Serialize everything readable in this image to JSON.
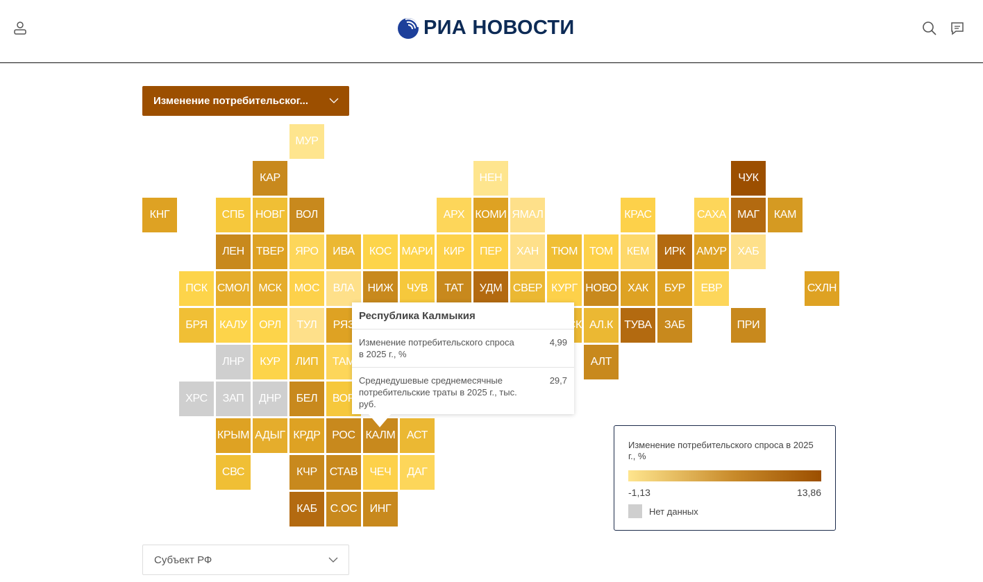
{
  "header": {
    "logo_text": "РИА НОВОСТИ",
    "icons": [
      "user-icon",
      "search-icon",
      "comment-icon"
    ]
  },
  "indicator_select": {
    "value": "Изменение потребительског..."
  },
  "region_select": {
    "placeholder": "Субъект РФ"
  },
  "colors": {
    "scale_min": "#fee58e",
    "scale_max": "#9c4f00",
    "no_data": "#cfcfcf",
    "accent": "#9c4f00"
  },
  "tiles": [
    {
      "label": "МУР",
      "color": "#fee58e"
    },
    {
      "label": "КАР",
      "color": "#c8891d"
    },
    {
      "label": "НЕН",
      "color": "#fee58e"
    },
    {
      "label": "ЧУК",
      "color": "#9c4f00"
    },
    {
      "label": "КНГ",
      "color": "#dea223"
    },
    {
      "label": "СПБ",
      "color": "#f6c83c"
    },
    {
      "label": "НОВГ",
      "color": "#f0bf35"
    },
    {
      "label": "ВОЛ",
      "color": "#c8891d"
    },
    {
      "label": "АРХ",
      "color": "#fdd65a"
    },
    {
      "label": "КОМИ",
      "color": "#dea223"
    },
    {
      "label": "ЯМАЛ",
      "color": "#fee08a"
    },
    {
      "label": "КРАС",
      "color": "#fdd14a"
    },
    {
      "label": "САХА",
      "color": "#fdd65a"
    },
    {
      "label": "МАГ",
      "color": "#b36a10"
    },
    {
      "label": "КАМ",
      "color": "#d59a22"
    },
    {
      "label": "ЛЕН",
      "color": "#c8891d"
    },
    {
      "label": "ТВЕР",
      "color": "#dea223"
    },
    {
      "label": "ЯРО",
      "color": "#fdd65a"
    },
    {
      "label": "ИВА",
      "color": "#ebb833"
    },
    {
      "label": "КОС",
      "color": "#fdd44a"
    },
    {
      "label": "МАРИ",
      "color": "#fdd44a"
    },
    {
      "label": "КИР",
      "color": "#fdd14a"
    },
    {
      "label": "ПЕР",
      "color": "#fdd14a"
    },
    {
      "label": "ХАН",
      "color": "#fee08a"
    },
    {
      "label": "ТЮМ",
      "color": "#f0bf35"
    },
    {
      "label": "ТОМ",
      "color": "#fdd14a"
    },
    {
      "label": "КЕМ",
      "color": "#fdd86a"
    },
    {
      "label": "ИРК",
      "color": "#b36a10"
    },
    {
      "label": "АМУР",
      "color": "#dea223"
    },
    {
      "label": "ХАБ",
      "color": "#fee08a"
    },
    {
      "label": "ПСК",
      "color": "#fdd44a"
    },
    {
      "label": "СМОЛ",
      "color": "#e5ad2c"
    },
    {
      "label": "МСК",
      "color": "#e5ad2c"
    },
    {
      "label": "МОС",
      "color": "#fdd14a"
    },
    {
      "label": "ВЛА",
      "color": "#fee08a"
    },
    {
      "label": "НИЖ",
      "color": "#c8891d"
    },
    {
      "label": "ЧУВ",
      "color": "#f6c83c"
    },
    {
      "label": "ТАТ",
      "color": "#c8891d"
    },
    {
      "label": "УДМ",
      "color": "#b36a10"
    },
    {
      "label": "СВЕР",
      "color": "#ebb833"
    },
    {
      "label": "КУРГ",
      "color": "#fdd14a"
    },
    {
      "label": "НОВО",
      "color": "#c8891d"
    },
    {
      "label": "ХАК",
      "color": "#dea223"
    },
    {
      "label": "БУР",
      "color": "#dea223"
    },
    {
      "label": "ЕВР",
      "color": "#fdd65a"
    },
    {
      "label": "СХЛН",
      "color": "#dea223"
    },
    {
      "label": "БРЯ",
      "color": "#f0bf35"
    },
    {
      "label": "КАЛУ",
      "color": "#fdd44a"
    },
    {
      "label": "ОРЛ",
      "color": "#fdd44a"
    },
    {
      "label": "ТУЛ",
      "color": "#fee08a"
    },
    {
      "label": "РЯЗ",
      "color": "#dea223"
    },
    {
      "label": "ОМСК",
      "color": "#ebb833"
    },
    {
      "label": "АЛ.К",
      "color": "#ebb833"
    },
    {
      "label": "ТУВА",
      "color": "#b36a10"
    },
    {
      "label": "ЗАБ",
      "color": "#c8891d"
    },
    {
      "label": "ПРИ",
      "color": "#c8891d"
    },
    {
      "label": "ЛНР",
      "color": "#cfcfcf"
    },
    {
      "label": "КУР",
      "color": "#fdd44a"
    },
    {
      "label": "ЛИП",
      "color": "#f0bf35"
    },
    {
      "label": "ТАМ",
      "color": "#fdd65a"
    },
    {
      "label": "АЛТ",
      "color": "#c8891d"
    },
    {
      "label": "ХРС",
      "color": "#cfcfcf"
    },
    {
      "label": "ЗАП",
      "color": "#cfcfcf"
    },
    {
      "label": "ДНР",
      "color": "#cfcfcf"
    },
    {
      "label": "БЕЛ",
      "color": "#c8891d"
    },
    {
      "label": "ВОР",
      "color": "#f6c83c"
    },
    {
      "label": "КРЫМ",
      "color": "#dea223"
    },
    {
      "label": "АДЫГ",
      "color": "#e5ad2c"
    },
    {
      "label": "КРДР",
      "color": "#dea223"
    },
    {
      "label": "РОС",
      "color": "#c8891d"
    },
    {
      "label": "КАЛМ",
      "color": "#c8891d"
    },
    {
      "label": "АСТ",
      "color": "#ebb833"
    },
    {
      "label": "СВС",
      "color": "#f0bf35"
    },
    {
      "label": "КЧР",
      "color": "#c8891d"
    },
    {
      "label": "СТАВ",
      "color": "#c8891d"
    },
    {
      "label": "ЧЕЧ",
      "color": "#fdd14a"
    },
    {
      "label": "ДАГ",
      "color": "#fdd65a"
    },
    {
      "label": "КАБ",
      "color": "#b36a10"
    },
    {
      "label": "С.ОС",
      "color": "#c8891d"
    },
    {
      "label": "ИНГ",
      "color": "#c8891d"
    }
  ],
  "tooltip": {
    "title": "Республика Калмыкия",
    "rows": [
      {
        "label": "Изменение потребительского спроса в 2025 г., %",
        "value": "4,99"
      },
      {
        "label": "Среднедушевые среднемесячные потребительские траты в 2025 г., тыс. руб.",
        "value": "29,7"
      }
    ]
  },
  "legend": {
    "title": "Изменение потребительского спроса в 2025 г., %",
    "min": "-1,13",
    "max": "13,86",
    "no_data_label": "Нет данных"
  }
}
